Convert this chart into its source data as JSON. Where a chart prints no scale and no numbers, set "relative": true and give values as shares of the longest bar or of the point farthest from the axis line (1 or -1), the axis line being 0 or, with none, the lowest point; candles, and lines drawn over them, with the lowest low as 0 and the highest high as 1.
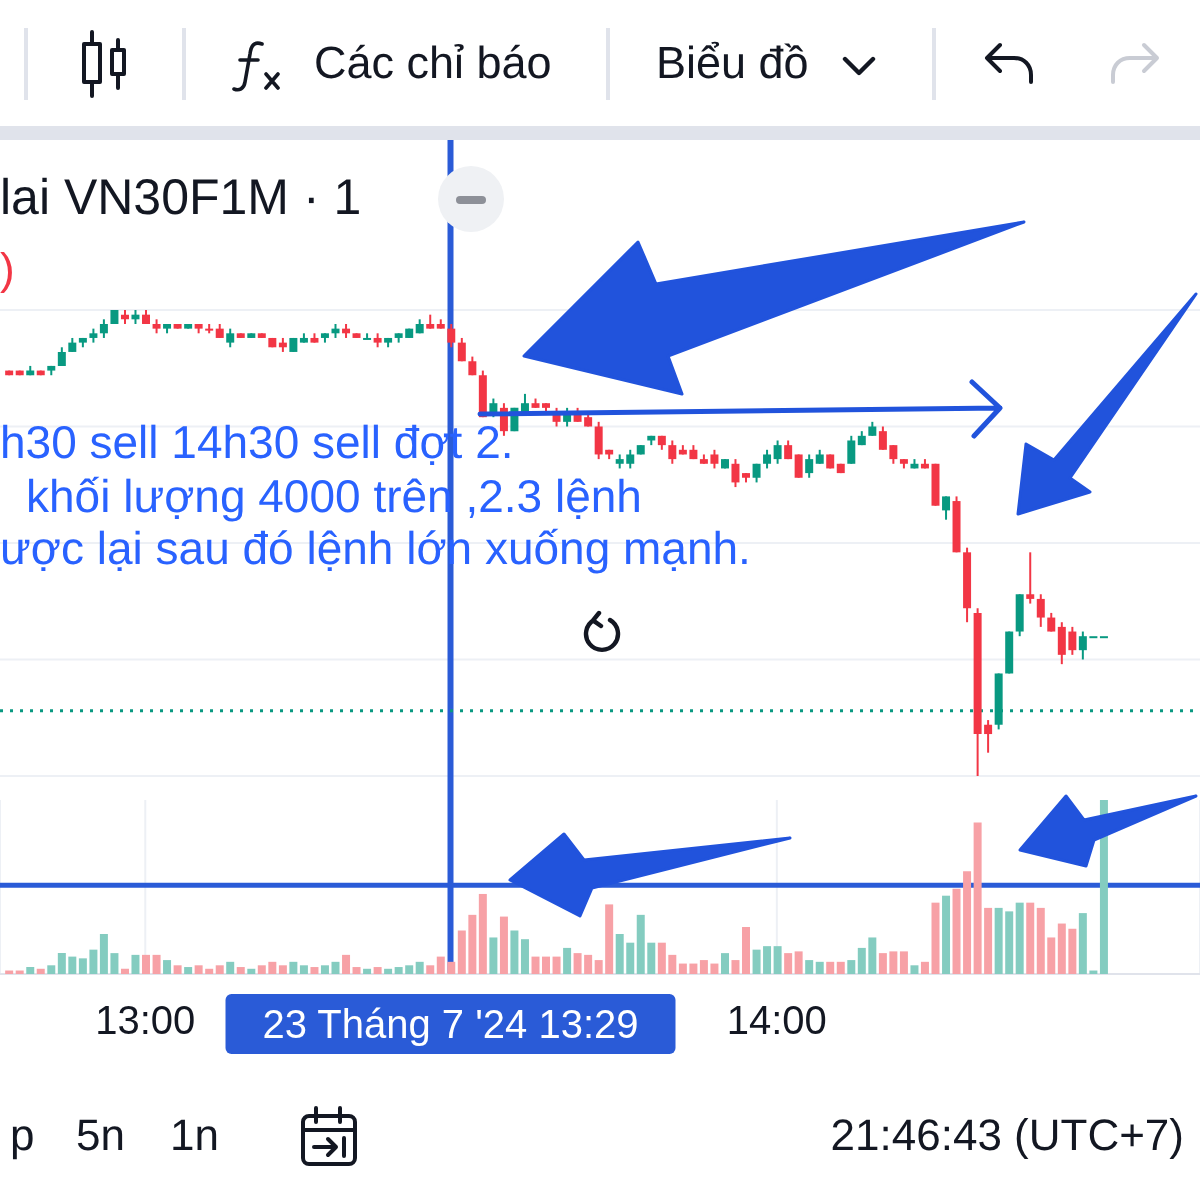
{
  "chart_data": [
    {
      "type": "candlestick",
      "title": "lai VN30F1M · 1",
      "relative": true,
      "x": [
        12.7833,
        12.8,
        12.8167,
        12.8333,
        12.85,
        12.8667,
        12.8833,
        12.9,
        12.9167,
        12.9333,
        12.95,
        12.9667,
        12.9833,
        13,
        13.0167,
        13.0333,
        13.05,
        13.0667,
        13.0833,
        13.1,
        13.1167,
        13.1333,
        13.15,
        13.1667,
        13.1833,
        13.2,
        13.2167,
        13.2333,
        13.25,
        13.2667,
        13.2833,
        13.3,
        13.3167,
        13.3333,
        13.35,
        13.3667,
        13.3833,
        13.4,
        13.4167,
        13.4333,
        13.45,
        13.4667,
        13.4833,
        13.5,
        13.5167,
        13.5333,
        13.55,
        13.5667,
        13.5833,
        13.6,
        13.6167,
        13.6333,
        13.65,
        13.6667,
        13.6833,
        13.7,
        13.7167,
        13.7333,
        13.75,
        13.7667,
        13.7833,
        13.8,
        13.8167,
        13.8333,
        13.85,
        13.8667,
        13.8833,
        13.9,
        13.9167,
        13.9333,
        13.95,
        13.9667,
        13.9833,
        14,
        14.0167,
        14.0333,
        14.05,
        14.0667,
        14.0833,
        14.1,
        14.1167,
        14.1333,
        14.15,
        14.1667,
        14.1833,
        14.2,
        14.2167,
        14.2333,
        14.25,
        14.2667,
        14.2833,
        14.3,
        14.3167,
        14.3333,
        14.35,
        14.3667,
        14.3833,
        14.4,
        14.4167,
        14.4333,
        14.45,
        14.4667,
        14.4833,
        14.5,
        14.5167
      ],
      "ohlc": [
        [
          0.87,
          0.87,
          0.86,
          0.86
        ],
        [
          0.87,
          0.87,
          0.86,
          0.86
        ],
        [
          0.86,
          0.88,
          0.86,
          0.87
        ],
        [
          0.87,
          0.87,
          0.86,
          0.86
        ],
        [
          0.87,
          0.88,
          0.86,
          0.88
        ],
        [
          0.88,
          0.92,
          0.88,
          0.91
        ],
        [
          0.91,
          0.94,
          0.91,
          0.93
        ],
        [
          0.93,
          0.94,
          0.92,
          0.94
        ],
        [
          0.94,
          0.96,
          0.93,
          0.95
        ],
        [
          0.95,
          0.98,
          0.94,
          0.97
        ],
        [
          0.97,
          1,
          0.97,
          1
        ],
        [
          0.99,
          1,
          0.97,
          0.98
        ],
        [
          0.98,
          1,
          0.97,
          0.99
        ],
        [
          0.99,
          1,
          0.97,
          0.97
        ],
        [
          0.97,
          0.98,
          0.95,
          0.96
        ],
        [
          0.96,
          0.97,
          0.95,
          0.97
        ],
        [
          0.97,
          0.97,
          0.96,
          0.96
        ],
        [
          0.96,
          0.97,
          0.96,
          0.97
        ],
        [
          0.97,
          0.97,
          0.95,
          0.96
        ],
        [
          0.96,
          0.97,
          0.95,
          0.96
        ],
        [
          0.96,
          0.97,
          0.94,
          0.94
        ],
        [
          0.93,
          0.96,
          0.92,
          0.95
        ],
        [
          0.95,
          0.95,
          0.94,
          0.94
        ],
        [
          0.94,
          0.95,
          0.94,
          0.95
        ],
        [
          0.95,
          0.95,
          0.94,
          0.94
        ],
        [
          0.94,
          0.94,
          0.92,
          0.92
        ],
        [
          0.93,
          0.94,
          0.91,
          0.92
        ],
        [
          0.91,
          0.94,
          0.91,
          0.94
        ],
        [
          0.93,
          0.95,
          0.93,
          0.94
        ],
        [
          0.94,
          0.95,
          0.93,
          0.93
        ],
        [
          0.94,
          0.95,
          0.93,
          0.95
        ],
        [
          0.95,
          0.97,
          0.94,
          0.96
        ],
        [
          0.96,
          0.97,
          0.94,
          0.95
        ],
        [
          0.95,
          0.95,
          0.94,
          0.94
        ],
        [
          0.94,
          0.95,
          0.94,
          0.94
        ],
        [
          0.94,
          0.95,
          0.92,
          0.93
        ],
        [
          0.93,
          0.94,
          0.92,
          0.94
        ],
        [
          0.94,
          0.95,
          0.93,
          0.95
        ],
        [
          0.94,
          0.96,
          0.94,
          0.96
        ],
        [
          0.95,
          0.98,
          0.95,
          0.97
        ],
        [
          0.97,
          0.99,
          0.96,
          0.96
        ],
        [
          0.97,
          0.98,
          0.96,
          0.96
        ],
        [
          0.96,
          0.97,
          0.92,
          0.93
        ],
        [
          0.93,
          0.94,
          0.89,
          0.89
        ],
        [
          0.89,
          0.9,
          0.86,
          0.86
        ],
        [
          0.86,
          0.87,
          0.77,
          0.77
        ],
        [
          0.78,
          0.81,
          0.77,
          0.8
        ],
        [
          0.79,
          0.8,
          0.73,
          0.74
        ],
        [
          0.74,
          0.79,
          0.74,
          0.79
        ],
        [
          0.78,
          0.82,
          0.78,
          0.8
        ],
        [
          0.8,
          0.81,
          0.79,
          0.79
        ],
        [
          0.8,
          0.8,
          0.78,
          0.79
        ],
        [
          0.78,
          0.79,
          0.75,
          0.76
        ],
        [
          0.76,
          0.79,
          0.75,
          0.78
        ],
        [
          0.78,
          0.79,
          0.76,
          0.76
        ],
        [
          0.77,
          0.78,
          0.75,
          0.75
        ],
        [
          0.75,
          0.76,
          0.68,
          0.69
        ],
        [
          0.7,
          0.7,
          0.68,
          0.69
        ],
        [
          0.67,
          0.69,
          0.66,
          0.68
        ],
        [
          0.67,
          0.7,
          0.66,
          0.69
        ],
        [
          0.69,
          0.71,
          0.69,
          0.71
        ],
        [
          0.72,
          0.73,
          0.71,
          0.73
        ],
        [
          0.73,
          0.73,
          0.7,
          0.71
        ],
        [
          0.71,
          0.72,
          0.67,
          0.68
        ],
        [
          0.7,
          0.71,
          0.69,
          0.69
        ],
        [
          0.7,
          0.71,
          0.68,
          0.68
        ],
        [
          0.68,
          0.69,
          0.67,
          0.67
        ],
        [
          0.69,
          0.7,
          0.66,
          0.67
        ],
        [
          0.66,
          0.68,
          0.66,
          0.68
        ],
        [
          0.67,
          0.68,
          0.62,
          0.63
        ],
        [
          0.65,
          0.65,
          0.63,
          0.64
        ],
        [
          0.64,
          0.67,
          0.63,
          0.67
        ],
        [
          0.67,
          0.7,
          0.66,
          0.69
        ],
        [
          0.68,
          0.72,
          0.67,
          0.71
        ],
        [
          0.71,
          0.72,
          0.68,
          0.68
        ],
        [
          0.69,
          0.69,
          0.64,
          0.64
        ],
        [
          0.65,
          0.69,
          0.64,
          0.68
        ],
        [
          0.67,
          0.7,
          0.67,
          0.69
        ],
        [
          0.69,
          0.69,
          0.66,
          0.66
        ],
        [
          0.67,
          0.67,
          0.65,
          0.65
        ],
        [
          0.67,
          0.73,
          0.67,
          0.72
        ],
        [
          0.71,
          0.74,
          0.71,
          0.73
        ],
        [
          0.73,
          0.76,
          0.73,
          0.75
        ],
        [
          0.74,
          0.75,
          0.7,
          0.7
        ],
        [
          0.71,
          0.71,
          0.67,
          0.68
        ],
        [
          0.68,
          0.68,
          0.66,
          0.67
        ],
        [
          0.66,
          0.68,
          0.66,
          0.67
        ],
        [
          0.67,
          0.68,
          0.66,
          0.66
        ],
        [
          0.67,
          0.67,
          0.58,
          0.58
        ],
        [
          0.57,
          0.6,
          0.55,
          0.6
        ],
        [
          0.59,
          0.6,
          0.48,
          0.48
        ],
        [
          0.48,
          0.49,
          0.33,
          0.36
        ],
        [
          0.35,
          0.36,
          0,
          0.09
        ],
        [
          0.11,
          0.12,
          0.05,
          0.09
        ],
        [
          0.11,
          0.22,
          0.1,
          0.22
        ],
        [
          0.22,
          0.31,
          0.22,
          0.31
        ],
        [
          0.31,
          0.39,
          0.3,
          0.39
        ],
        [
          0.39,
          0.48,
          0.37,
          0.38
        ],
        [
          0.38,
          0.39,
          0.32,
          0.34
        ],
        [
          0.34,
          0.35,
          0.31,
          0.31
        ],
        [
          0.32,
          0.33,
          0.24,
          0.26
        ],
        [
          0.31,
          0.32,
          0.26,
          0.27
        ],
        [
          0.27,
          0.31,
          0.25,
          0.3
        ],
        [
          0.3,
          0.3,
          0.3,
          0.3
        ],
        [
          0.3,
          0.3,
          0.3,
          0.3
        ]
      ],
      "colors": [
        "#f23645",
        "#f23645",
        "#089981",
        "#f23645",
        "#089981",
        "#089981",
        "#089981",
        "#089981",
        "#089981",
        "#089981",
        "#089981",
        "#f23645",
        "#089981",
        "#f23645",
        "#f23645",
        "#089981",
        "#f23645",
        "#089981",
        "#f23645",
        "#f23645",
        "#f23645",
        "#089981",
        "#f23645",
        "#089981",
        "#f23645",
        "#f23645",
        "#f23645",
        "#089981",
        "#089981",
        "#f23645",
        "#089981",
        "#089981",
        "#f23645",
        "#f23645",
        "#089981",
        "#f23645",
        "#089981",
        "#089981",
        "#089981",
        "#089981",
        "#f23645",
        "#f23645",
        "#f23645",
        "#f23645",
        "#f23645",
        "#f23645",
        "#089981",
        "#f23645",
        "#089981",
        "#089981",
        "#f23645",
        "#f23645",
        "#f23645",
        "#089981",
        "#f23645",
        "#f23645",
        "#f23645",
        "#f23645",
        "#089981",
        "#089981",
        "#089981",
        "#089981",
        "#f23645",
        "#f23645",
        "#f23645",
        "#f23645",
        "#f23645",
        "#f23645",
        "#089981",
        "#f23645",
        "#f23645",
        "#089981",
        "#089981",
        "#089981",
        "#f23645",
        "#f23645",
        "#089981",
        "#089981",
        "#f23645",
        "#f23645",
        "#089981",
        "#089981",
        "#089981",
        "#f23645",
        "#f23645",
        "#f23645",
        "#089981",
        "#f23645",
        "#f23645",
        "#089981",
        "#f23645",
        "#f23645",
        "#f23645",
        "#f23645",
        "#089981",
        "#089981",
        "#089981",
        "#f23645",
        "#f23645",
        "#f23645",
        "#f23645",
        "#f23645",
        "#089981",
        "#089981",
        "#089981"
      ],
      "xlim": [
        12.77,
        14.67
      ],
      "tick_labels": false,
      "grid": "y",
      "ref_lines": [
        {
          "axis": "x",
          "value": 13.4833,
          "color": "#2a5bd7"
        },
        {
          "axis": "y",
          "value": 0.14,
          "color": "#089981",
          "line_style": "dotted"
        }
      ],
      "annotations": [
        "h30 sell 14h30 sell đợt 2.",
        "khối lượng 4000 trên ,2.3 lệnh",
        "ược lại sau đó lệnh lớn xuống mạnh.",
        ")",
        "Các chỉ báo",
        "Biểu đồ",
        "p",
        "5n",
        "1n",
        "21:46:43 (UTC+7)"
      ]
    },
    {
      "type": "bar",
      "relative": true,
      "x": [
        12.7833,
        12.8,
        12.8167,
        12.8333,
        12.85,
        12.8667,
        12.8833,
        12.9,
        12.9167,
        12.9333,
        12.95,
        12.9667,
        12.9833,
        13,
        13.0167,
        13.0333,
        13.05,
        13.0667,
        13.0833,
        13.1,
        13.1167,
        13.1333,
        13.15,
        13.1667,
        13.1833,
        13.2,
        13.2167,
        13.2333,
        13.25,
        13.2667,
        13.2833,
        13.3,
        13.3167,
        13.3333,
        13.35,
        13.3667,
        13.3833,
        13.4,
        13.4167,
        13.4333,
        13.45,
        13.4667,
        13.4833,
        13.5,
        13.5167,
        13.5333,
        13.55,
        13.5667,
        13.5833,
        13.6,
        13.6167,
        13.6333,
        13.65,
        13.6667,
        13.6833,
        13.7,
        13.7167,
        13.7333,
        13.75,
        13.7667,
        13.7833,
        13.8,
        13.8167,
        13.8333,
        13.85,
        13.8667,
        13.8833,
        13.9,
        13.9167,
        13.9333,
        13.95,
        13.9667,
        13.9833,
        14,
        14.0167,
        14.0333,
        14.05,
        14.0667,
        14.0833,
        14.1,
        14.1167,
        14.1333,
        14.15,
        14.1667,
        14.1833,
        14.2,
        14.2167,
        14.2333,
        14.25,
        14.2667,
        14.2833,
        14.3,
        14.3167,
        14.3333,
        14.35,
        14.3667,
        14.3833,
        14.4,
        14.4167,
        14.4333,
        14.45,
        14.4667,
        14.4833,
        14.5,
        14.5167
      ],
      "values": [
        0.02,
        0.02,
        0.04,
        0.03,
        0.05,
        0.12,
        0.1,
        0.09,
        0.14,
        0.23,
        0.12,
        0.03,
        0.11,
        0.11,
        0.11,
        0.08,
        0.05,
        0.04,
        0.05,
        0.03,
        0.05,
        0.07,
        0.04,
        0.03,
        0.05,
        0.07,
        0.05,
        0.07,
        0.05,
        0.04,
        0.05,
        0.07,
        0.11,
        0.04,
        0.03,
        0.04,
        0.03,
        0.04,
        0.05,
        0.07,
        0.05,
        0.1,
        0.07,
        0.25,
        0.34,
        0.46,
        0.21,
        0.33,
        0.25,
        0.2,
        0.1,
        0.1,
        0.1,
        0.15,
        0.12,
        0.11,
        0.08,
        0.4,
        0.23,
        0.18,
        0.34,
        0.18,
        0.18,
        0.11,
        0.06,
        0.06,
        0.08,
        0.06,
        0.12,
        0.08,
        0.27,
        0.14,
        0.16,
        0.16,
        0.12,
        0.13,
        0.08,
        0.07,
        0.07,
        0.07,
        0.08,
        0.15,
        0.21,
        0.12,
        0.13,
        0.13,
        0.05,
        0.07,
        0.41,
        0.45,
        0.49,
        0.59,
        0.87,
        0.38,
        0.38,
        0.36,
        0.41,
        0.41,
        0.38,
        0.21,
        0.29,
        0.26,
        0.35,
        0.02,
        1
      ],
      "colors": [
        "#f7a1a6",
        "#f7a1a6",
        "#84ccc0",
        "#f7a1a6",
        "#84ccc0",
        "#84ccc0",
        "#84ccc0",
        "#84ccc0",
        "#84ccc0",
        "#84ccc0",
        "#84ccc0",
        "#f7a1a6",
        "#84ccc0",
        "#f7a1a6",
        "#f7a1a6",
        "#84ccc0",
        "#f7a1a6",
        "#84ccc0",
        "#f7a1a6",
        "#f7a1a6",
        "#f7a1a6",
        "#84ccc0",
        "#f7a1a6",
        "#84ccc0",
        "#f7a1a6",
        "#f7a1a6",
        "#f7a1a6",
        "#84ccc0",
        "#84ccc0",
        "#f7a1a6",
        "#84ccc0",
        "#84ccc0",
        "#f7a1a6",
        "#f7a1a6",
        "#84ccc0",
        "#f7a1a6",
        "#84ccc0",
        "#84ccc0",
        "#84ccc0",
        "#84ccc0",
        "#f7a1a6",
        "#f7a1a6",
        "#f7a1a6",
        "#f7a1a6",
        "#f7a1a6",
        "#f7a1a6",
        "#84ccc0",
        "#f7a1a6",
        "#84ccc0",
        "#84ccc0",
        "#f7a1a6",
        "#f7a1a6",
        "#f7a1a6",
        "#84ccc0",
        "#f7a1a6",
        "#f7a1a6",
        "#f7a1a6",
        "#f7a1a6",
        "#84ccc0",
        "#84ccc0",
        "#84ccc0",
        "#84ccc0",
        "#f7a1a6",
        "#f7a1a6",
        "#f7a1a6",
        "#f7a1a6",
        "#f7a1a6",
        "#f7a1a6",
        "#84ccc0",
        "#f7a1a6",
        "#f7a1a6",
        "#84ccc0",
        "#84ccc0",
        "#84ccc0",
        "#f7a1a6",
        "#f7a1a6",
        "#84ccc0",
        "#84ccc0",
        "#f7a1a6",
        "#f7a1a6",
        "#84ccc0",
        "#84ccc0",
        "#84ccc0",
        "#f7a1a6",
        "#f7a1a6",
        "#f7a1a6",
        "#84ccc0",
        "#f7a1a6",
        "#f7a1a6",
        "#84ccc0",
        "#f7a1a6",
        "#f7a1a6",
        "#f7a1a6",
        "#f7a1a6",
        "#84ccc0",
        "#84ccc0",
        "#84ccc0",
        "#f7a1a6",
        "#f7a1a6",
        "#f7a1a6",
        "#f7a1a6",
        "#f7a1a6",
        "#84ccc0",
        "#84ccc0",
        "#84ccc0"
      ],
      "xlim": [
        12.77,
        14.67
      ],
      "xticks": [
        {
          "value": 13,
          "label": "13:00"
        },
        {
          "value": 14,
          "label": "14:00"
        }
      ],
      "grid": "x",
      "ref_lines": [
        {
          "axis": "x",
          "value": 13.4833,
          "label": "23 Tháng 7 '24 13:29",
          "color": "#2a5bd7"
        },
        {
          "axis": "y",
          "value": 0.51,
          "color": "#2a5bd7"
        }
      ]
    }
  ]
}
